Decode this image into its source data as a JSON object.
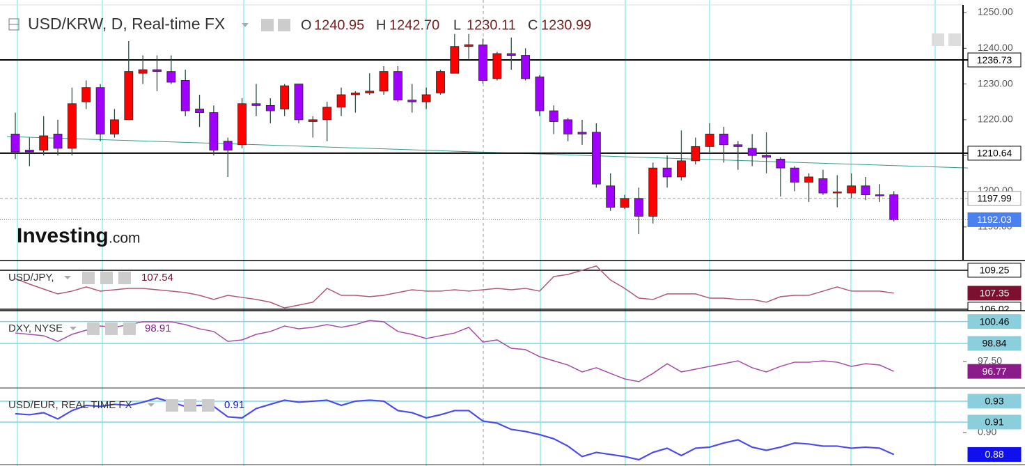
{
  "chart_data": [
    {
      "type": "candlestick",
      "title": "USD/KRW, D, Real-time FX",
      "ohlc": [
        {
          "name": "O",
          "value": 1240.95,
          "label": "1240.95"
        },
        {
          "name": "H",
          "value": 1242.7,
          "label": "1242.70"
        },
        {
          "name": "L",
          "value": 1230.11,
          "label": "1230.11"
        },
        {
          "name": "C",
          "value": 1230.99,
          "label": "1230.99"
        }
      ],
      "up_color": "#ff0000",
      "down_color": "#a000ff",
      "wick_color": "#2f4f3f",
      "last_color": "#4a80f0",
      "open": [
        1216,
        1211.5,
        1211.5,
        1216,
        1212,
        1225,
        1229,
        1216,
        1220,
        1233,
        1234,
        1233.5,
        1231,
        1223,
        1222,
        1214,
        1213,
        1224.5,
        1224,
        1223,
        1230,
        1219.5,
        1220,
        1223.5,
        1227,
        1227.5,
        1228,
        1233.5,
        1225.5,
        1225,
        1227.5,
        1233,
        1240.5,
        1240.95,
        1231.5,
        1238.5,
        1238,
        1232,
        1222.5,
        1220,
        1216.5,
        1216.5,
        1201.5,
        1195.5,
        1198,
        1193,
        1206.5,
        1204,
        1208.5,
        1212.5,
        1216,
        1213,
        1212,
        1210,
        1209,
        1206.5,
        1202.5,
        1203.5,
        1199.5,
        1199.5,
        1201.5,
        1199,
        1199
      ],
      "high": [
        1222,
        1215,
        1221,
        1220,
        1229,
        1231,
        1230,
        1223,
        1242,
        1238,
        1238,
        1238,
        1234,
        1227,
        1224,
        1215,
        1226,
        1230,
        1226,
        1230,
        1230,
        1221,
        1225,
        1229,
        1228,
        1233,
        1235,
        1235,
        1230,
        1229,
        1234,
        1244,
        1244,
        1242.7,
        1239,
        1243,
        1240,
        1232.5,
        1224,
        1220.5,
        1220,
        1219,
        1205,
        1199,
        1201,
        1208,
        1210,
        1217,
        1215,
        1219,
        1218,
        1214,
        1216,
        1216.5,
        1209.5,
        1207,
        1205,
        1206,
        1204.5,
        1205,
        1204,
        1202,
        1200
      ],
      "low": [
        1209,
        1207,
        1210,
        1210,
        1210,
        1223,
        1214,
        1215,
        1220,
        1230,
        1228,
        1230,
        1221,
        1218,
        1210,
        1204,
        1212,
        1221,
        1219,
        1221,
        1219,
        1215,
        1214,
        1221,
        1222,
        1227,
        1227,
        1225,
        1222,
        1223,
        1227,
        1233,
        1237,
        1230.11,
        1231,
        1234,
        1231,
        1221,
        1216,
        1214,
        1213,
        1201,
        1194.5,
        1195,
        1188,
        1191,
        1201,
        1203,
        1207.5,
        1211,
        1208,
        1206,
        1207,
        1205,
        1198.5,
        1200,
        1197,
        1199,
        1195.5,
        1198,
        1197.5,
        1197,
        1191.5
      ],
      "close": [
        1211,
        1211,
        1215.5,
        1212,
        1224.5,
        1229,
        1216,
        1220,
        1233.5,
        1234,
        1233.5,
        1230.5,
        1222.5,
        1222,
        1211.5,
        1211.5,
        1224.5,
        1224,
        1222.5,
        1229.5,
        1220,
        1220,
        1223.5,
        1227,
        1227.5,
        1228,
        1233.5,
        1225.5,
        1225,
        1227,
        1233.5,
        1240.5,
        1241,
        1230.99,
        1238.5,
        1238,
        1231.5,
        1222.5,
        1219.5,
        1216,
        1216,
        1202,
        1195.5,
        1198,
        1193,
        1206.5,
        1204,
        1208.5,
        1212.5,
        1216,
        1213,
        1212.5,
        1210,
        1209.5,
        1206.5,
        1202.5,
        1204,
        1199.5,
        1199.8,
        1201.5,
        1199,
        1199,
        1192.03
      ],
      "ylim": [
        1181,
        1253.5
      ],
      "yticks": [
        {
          "value": 1190,
          "label": "1190.00"
        },
        {
          "value": 1200,
          "label": "1200.00"
        },
        {
          "value": 1210,
          "label": "1210.00"
        },
        {
          "value": 1220,
          "label": "1220.00"
        },
        {
          "value": 1230,
          "label": "1230.00"
        },
        {
          "value": 1240,
          "label": "1240.00"
        },
        {
          "value": 1250,
          "label": "1250.00"
        }
      ],
      "levels": [
        {
          "value": 1236.73,
          "style": "solid",
          "color": "#000000"
        },
        {
          "value": 1210.64,
          "style": "solid",
          "color": "#000000"
        },
        {
          "value": 1197.99,
          "style": "dashed",
          "color": "#999999"
        }
      ],
      "trendline": {
        "start": 1215.3,
        "end": 1206.5,
        "color": "#2e9e8a"
      },
      "logo": {
        "name": "Investing",
        "suffix": ".com"
      }
    },
    {
      "type": "line",
      "title": "USD/JPY,",
      "title_value": 107.54,
      "color": "#b0587a",
      "last_color": "#7b1030",
      "level_color": "#000000",
      "values": [
        108.56,
        108.1,
        107.69,
        107.29,
        107.52,
        107.87,
        107.52,
        107.63,
        107.75,
        107.75,
        107.63,
        107.52,
        107.4,
        107.17,
        106.83,
        107.17,
        107.0,
        106.83,
        106.6,
        106.13,
        106.36,
        106.6,
        107.75,
        107.17,
        107.17,
        107.06,
        107.17,
        107.4,
        107.63,
        107.52,
        107.52,
        107.63,
        107.52,
        107.63,
        107.75,
        107.63,
        107.75,
        107.52,
        108.73,
        108.9,
        109.25,
        109.6,
        108.44,
        107.75,
        106.94,
        106.83,
        107.29,
        107.29,
        107.29,
        106.94,
        106.94,
        106.83,
        106.83,
        106.6,
        107.06,
        107.17,
        107.17,
        107.52,
        107.87,
        107.52,
        107.52,
        107.52,
        107.35
      ],
      "ylim": [
        105.9,
        109.94
      ],
      "yticks": [],
      "levels": [
        109.25,
        106.02
      ]
    },
    {
      "type": "line",
      "title": "DXY, NYSE",
      "title_value": 98.91,
      "color": "#a64ca6",
      "last_color": "#8b1a8b",
      "level_color": "#7fd6e0",
      "level_box": "#8ccfdc",
      "values": [
        99.61,
        99.51,
        99.41,
        98.99,
        99.51,
        99.82,
        100.13,
        100.03,
        100.23,
        100.44,
        100.44,
        100.44,
        100.23,
        99.92,
        99.72,
        98.99,
        99.1,
        99.51,
        99.72,
        100.13,
        99.92,
        100.03,
        100.23,
        100.03,
        100.23,
        100.54,
        100.44,
        99.72,
        99.51,
        99.2,
        99.41,
        99.61,
        100.03,
        98.94,
        99.1,
        98.48,
        98.38,
        97.86,
        97.55,
        97.24,
        96.73,
        97.04,
        96.62,
        96.21,
        96.01,
        96.62,
        97.34,
        96.73,
        96.93,
        97.14,
        97.34,
        97.55,
        97.04,
        96.73,
        97.14,
        97.45,
        97.45,
        97.55,
        97.45,
        97.14,
        97.34,
        97.24,
        96.77
      ],
      "ylim": [
        95.54,
        101.16
      ],
      "yticks": [
        {
          "value": 97.5,
          "label": "97.50"
        }
      ],
      "levels": [
        100.46,
        98.84
      ]
    },
    {
      "type": "line",
      "title": "USD/EUR, REAL TIME FX",
      "title_value": 0.91,
      "color": "#4a4aee",
      "last_color": "#1010ee",
      "level_color": "#7fd6e0",
      "level_box": "#8ccfdc",
      "last_label": "0.88",
      "values": [
        0.918,
        0.917,
        0.919,
        0.913,
        0.921,
        0.926,
        0.925,
        0.927,
        0.926,
        0.929,
        0.933,
        0.929,
        0.925,
        0.926,
        0.925,
        0.915,
        0.914,
        0.923,
        0.927,
        0.931,
        0.929,
        0.93,
        0.931,
        0.926,
        0.93,
        0.931,
        0.93,
        0.921,
        0.919,
        0.914,
        0.917,
        0.921,
        0.921,
        0.911,
        0.909,
        0.903,
        0.901,
        0.898,
        0.894,
        0.887,
        0.877,
        0.881,
        0.879,
        0.877,
        0.874,
        0.881,
        0.885,
        0.878,
        0.885,
        0.886,
        0.89,
        0.893,
        0.886,
        0.883,
        0.886,
        0.89,
        0.889,
        0.887,
        0.887,
        0.885,
        0.886,
        0.885,
        0.879
      ],
      "ylim": [
        0.8693,
        0.9413
      ],
      "yticks": [
        {
          "value": 0.9,
          "label": "0.90"
        }
      ],
      "levels": [
        0.93,
        0.91
      ]
    }
  ]
}
